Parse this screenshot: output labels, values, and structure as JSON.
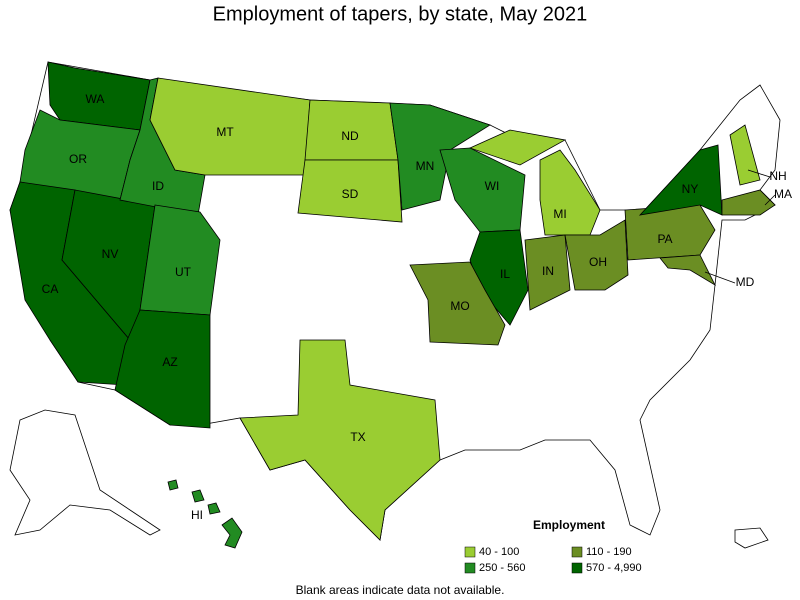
{
  "title": "Employment of tapers, by state, May 2021",
  "legend": {
    "title": "Employment",
    "items": [
      {
        "label": "40 - 100",
        "color": "#9acd32"
      },
      {
        "label": "110 - 190",
        "color": "#6b8e23"
      },
      {
        "label": "250 - 560",
        "color": "#228b22"
      },
      {
        "label": "570 - 4,990",
        "color": "#006400"
      }
    ]
  },
  "states": [
    {
      "label": "WA",
      "range": "570 - 4,990"
    },
    {
      "label": "OR",
      "range": "250 - 560"
    },
    {
      "label": "CA",
      "range": "570 - 4,990"
    },
    {
      "label": "NV",
      "range": "570 - 4,990"
    },
    {
      "label": "ID",
      "range": "250 - 560"
    },
    {
      "label": "MT",
      "range": "40 - 100"
    },
    {
      "label": "ND",
      "range": "40 - 100"
    },
    {
      "label": "SD",
      "range": "40 - 100"
    },
    {
      "label": "MN",
      "range": "250 - 560"
    },
    {
      "label": "WI",
      "range": "250 - 560"
    },
    {
      "label": "MI",
      "range": "40 - 100"
    },
    {
      "label": "IL",
      "range": "570 - 4,990"
    },
    {
      "label": "IN",
      "range": "110 - 190"
    },
    {
      "label": "OH",
      "range": "110 - 190"
    },
    {
      "label": "PA",
      "range": "110 - 190"
    },
    {
      "label": "NY",
      "range": "570 - 4,990"
    },
    {
      "label": "NH",
      "range": "40 - 100"
    },
    {
      "label": "MA",
      "range": "110 - 190"
    },
    {
      "label": "MD",
      "range": "110 - 190"
    },
    {
      "label": "MO",
      "range": "110 - 190"
    },
    {
      "label": "UT",
      "range": "250 - 560"
    },
    {
      "label": "AZ",
      "range": "570 - 4,990"
    },
    {
      "label": "TX",
      "range": "40 - 100"
    },
    {
      "label": "HI",
      "range": "250 - 560"
    }
  ],
  "footnote": "Blank areas indicate data not available."
}
